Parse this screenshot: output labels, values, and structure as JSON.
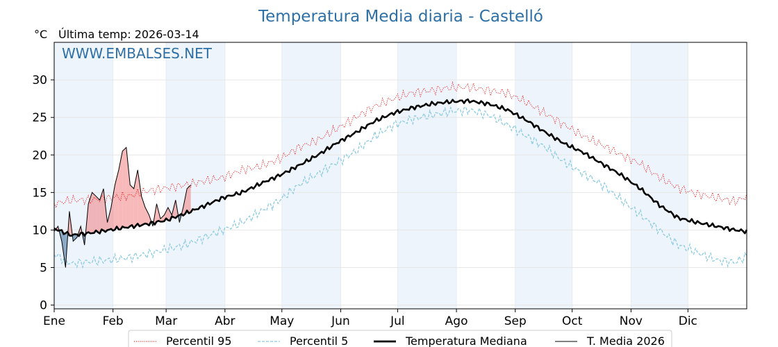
{
  "chart_data": {
    "type": "line",
    "title": "Temperatura Media diaria - Castelló",
    "unit": "°C",
    "last_temp_text": "Última temp: 2026-03-14",
    "watermark": "WWW.EMBALSES.NET",
    "xlim": [
      1,
      366
    ],
    "ylim": [
      -0.5,
      35
    ],
    "yticks": [
      0,
      5,
      10,
      15,
      20,
      25,
      30
    ],
    "grid": true,
    "legend_position": "bottom",
    "months": [
      {
        "label": "Ene",
        "start": 1
      },
      {
        "label": "Feb",
        "start": 32
      },
      {
        "label": "Mar",
        "start": 60
      },
      {
        "label": "Abr",
        "start": 91
      },
      {
        "label": "May",
        "start": 121
      },
      {
        "label": "Jun",
        "start": 152
      },
      {
        "label": "Jul",
        "start": 182
      },
      {
        "label": "Ago",
        "start": 213
      },
      {
        "label": "Sep",
        "start": 244
      },
      {
        "label": "Oct",
        "start": 274
      },
      {
        "label": "Nov",
        "start": 305
      },
      {
        "label": "Dic",
        "start": 335
      }
    ],
    "colors": {
      "title": "#2e6fa5",
      "p95": "#e8100f",
      "p5": "#8ccbe0",
      "median": "#000000",
      "current": "#000000",
      "above_fill": "#f08080",
      "below_fill": "#3a6c9c",
      "band_shade": "#eef4fb"
    },
    "series": [
      {
        "name": "Percentil 95",
        "style": "dotted",
        "x": [
          1,
          10,
          20,
          30,
          40,
          50,
          60,
          70,
          80,
          90,
          100,
          110,
          120,
          130,
          140,
          150,
          160,
          170,
          180,
          190,
          200,
          210,
          220,
          230,
          240,
          250,
          260,
          270,
          280,
          290,
          300,
          310,
          320,
          330,
          340,
          350,
          360,
          366
        ],
        "y": [
          13.5,
          14.0,
          14.0,
          14.3,
          14.5,
          15.2,
          15.6,
          16.0,
          16.5,
          17.0,
          18.0,
          18.5,
          19.5,
          21.0,
          22.0,
          23.5,
          25.0,
          26.5,
          27.5,
          28.3,
          28.6,
          29.0,
          29.0,
          28.6,
          28.2,
          27.0,
          25.5,
          24.0,
          22.5,
          21.3,
          20.0,
          18.8,
          17.0,
          15.6,
          14.8,
          14.3,
          13.8,
          14.5
        ]
      },
      {
        "name": "Percentil 5",
        "style": "dashed",
        "x": [
          1,
          10,
          20,
          30,
          40,
          50,
          60,
          70,
          80,
          90,
          100,
          110,
          120,
          130,
          140,
          150,
          160,
          170,
          180,
          190,
          200,
          210,
          220,
          230,
          240,
          250,
          260,
          270,
          280,
          290,
          300,
          310,
          320,
          330,
          340,
          350,
          360,
          366
        ],
        "y": [
          6.8,
          5.5,
          5.8,
          6.0,
          6.3,
          6.8,
          7.4,
          8.0,
          9.0,
          10.0,
          11.0,
          12.5,
          14.0,
          16.0,
          17.5,
          19.0,
          20.5,
          22.5,
          24.0,
          24.8,
          25.3,
          25.8,
          26.0,
          25.3,
          24.0,
          22.5,
          21.0,
          19.0,
          17.5,
          16.0,
          14.0,
          12.0,
          10.0,
          8.0,
          7.0,
          6.0,
          5.7,
          6.5
        ]
      },
      {
        "name": "Temperatura Mediana",
        "style": "solid-bold",
        "x": [
          1,
          10,
          20,
          30,
          40,
          50,
          60,
          70,
          80,
          90,
          100,
          110,
          120,
          130,
          140,
          150,
          160,
          170,
          180,
          190,
          200,
          210,
          220,
          230,
          240,
          250,
          260,
          270,
          280,
          290,
          300,
          310,
          320,
          330,
          340,
          350,
          360,
          366
        ],
        "y": [
          10.2,
          9.3,
          9.6,
          10.0,
          10.4,
          10.8,
          11.3,
          12.2,
          13.2,
          14.3,
          15.0,
          16.2,
          17.3,
          18.6,
          20.0,
          21.6,
          23.0,
          24.5,
          25.6,
          26.3,
          26.8,
          27.1,
          27.2,
          26.8,
          26.0,
          24.6,
          23.0,
          21.5,
          20.3,
          18.8,
          17.3,
          15.5,
          13.3,
          11.6,
          11.0,
          10.5,
          10.0,
          9.8
        ]
      },
      {
        "name": "T. Media 2026",
        "style": "solid-thin",
        "x": [
          1,
          3,
          5,
          7,
          9,
          11,
          13,
          15,
          17,
          19,
          21,
          23,
          25,
          27,
          29,
          31,
          33,
          35,
          37,
          39,
          41,
          43,
          45,
          47,
          49,
          51,
          53,
          55,
          57,
          59,
          61,
          63,
          65,
          67,
          69,
          71,
          73
        ],
        "y": [
          9.8,
          10.5,
          8.5,
          5.0,
          12.5,
          8.5,
          9.0,
          10.5,
          8.0,
          13.5,
          15.0,
          14.5,
          14.0,
          15.5,
          11.0,
          13.0,
          16.0,
          18.0,
          20.5,
          21.0,
          16.0,
          15.5,
          18.0,
          14.5,
          13.0,
          12.0,
          10.5,
          13.5,
          11.5,
          12.0,
          13.0,
          12.0,
          14.0,
          11.0,
          13.0,
          15.5,
          16.0
        ]
      }
    ]
  },
  "legend": {
    "items": [
      {
        "label": "Percentil 95"
      },
      {
        "label": "Percentil 5"
      },
      {
        "label": "Temperatura Mediana"
      },
      {
        "label": "T. Media 2026"
      }
    ]
  }
}
